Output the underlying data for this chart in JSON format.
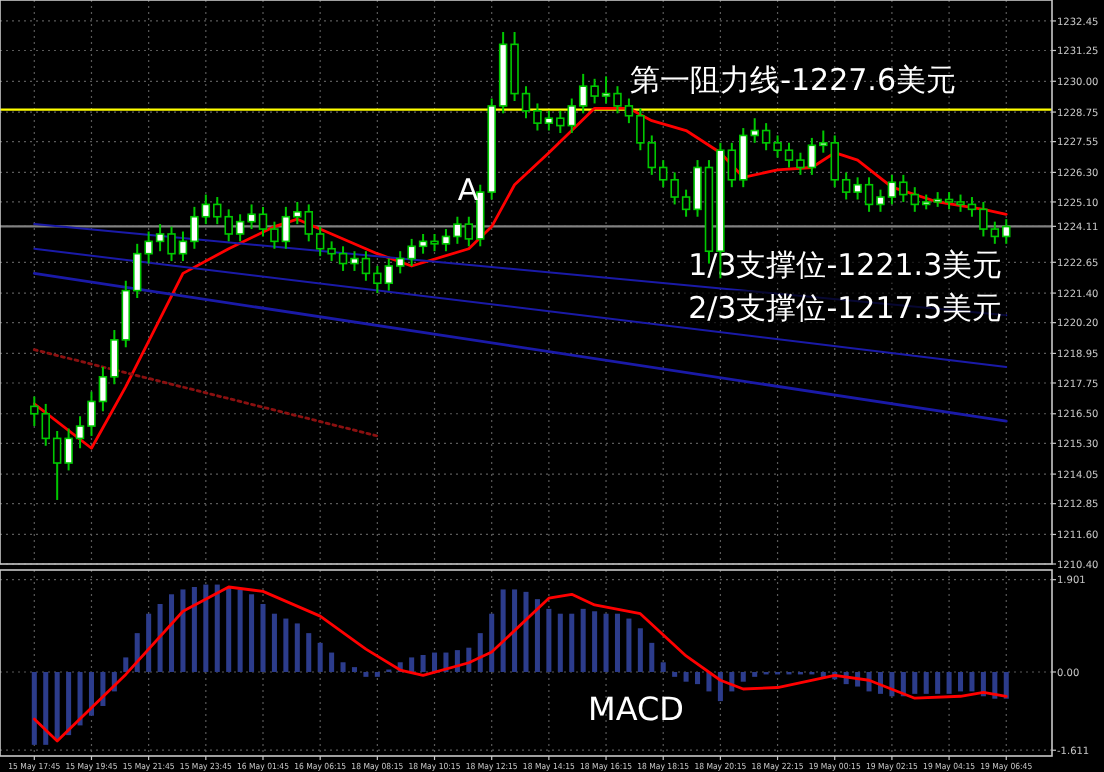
{
  "chart_data": [
    {
      "type": "candlestick",
      "color": "#00c800",
      "grid": true,
      "tick_labels": "y",
      "categories": [
        null,
        null,
        null,
        null,
        null,
        null,
        null,
        null,
        null,
        null,
        null,
        null,
        null,
        null,
        null,
        null,
        null,
        null,
        null,
        null,
        null,
        null,
        null,
        null,
        null,
        null,
        null,
        null,
        null,
        null,
        null,
        null,
        null,
        null,
        null,
        null,
        null,
        null,
        null,
        null,
        null,
        null,
        null,
        null,
        null,
        null,
        null,
        null,
        null,
        null,
        null,
        null,
        null,
        null,
        null,
        null,
        null,
        null,
        null,
        null,
        null,
        null,
        null,
        null,
        null,
        null,
        null,
        null,
        null,
        null,
        null,
        null,
        null,
        null,
        null,
        null,
        null,
        null,
        null,
        null,
        null,
        null,
        null,
        null,
        null,
        null
      ],
      "ohlc": [
        [
          1216.8,
          1217.2,
          1216.0,
          1216.5
        ],
        [
          1216.5,
          1216.9,
          1215.2,
          1215.5
        ],
        [
          1215.5,
          1215.8,
          1213.0,
          1214.5
        ],
        [
          1214.5,
          1215.9,
          1214.2,
          1215.5
        ],
        [
          1215.5,
          1216.4,
          1215.1,
          1216.0
        ],
        [
          1216.0,
          1217.4,
          1215.6,
          1217.0
        ],
        [
          1217.0,
          1218.4,
          1216.6,
          1218.0
        ],
        [
          1218.0,
          1219.9,
          1217.7,
          1219.5
        ],
        [
          1219.5,
          1221.9,
          1219.2,
          1221.5
        ],
        [
          1221.5,
          1223.4,
          1221.2,
          1223.0
        ],
        [
          1223.0,
          1223.9,
          1222.6,
          1223.5
        ],
        [
          1223.5,
          1224.2,
          1223.1,
          1223.8
        ],
        [
          1223.8,
          1224.1,
          1222.7,
          1223.0
        ],
        [
          1223.0,
          1223.9,
          1222.7,
          1223.5
        ],
        [
          1223.5,
          1224.9,
          1223.2,
          1224.5
        ],
        [
          1224.5,
          1225.4,
          1224.2,
          1225.0
        ],
        [
          1225.0,
          1225.3,
          1224.2,
          1224.5
        ],
        [
          1224.5,
          1224.8,
          1223.5,
          1223.8
        ],
        [
          1223.8,
          1224.6,
          1223.5,
          1224.3
        ],
        [
          1224.3,
          1225.0,
          1224.0,
          1224.6
        ],
        [
          1224.6,
          1224.9,
          1223.7,
          1224.0
        ],
        [
          1224.0,
          1224.3,
          1223.2,
          1223.5
        ],
        [
          1223.5,
          1224.9,
          1223.2,
          1224.5
        ],
        [
          1224.5,
          1225.1,
          1224.2,
          1224.7
        ],
        [
          1224.7,
          1225.0,
          1223.5,
          1223.8
        ],
        [
          1223.8,
          1224.1,
          1222.9,
          1223.2
        ],
        [
          1223.2,
          1223.5,
          1222.7,
          1223.0
        ],
        [
          1223.0,
          1223.3,
          1222.3,
          1222.6
        ],
        [
          1222.6,
          1223.1,
          1222.3,
          1222.8
        ],
        [
          1222.8,
          1223.1,
          1221.9,
          1222.2
        ],
        [
          1222.2,
          1222.5,
          1221.4,
          1221.8
        ],
        [
          1221.8,
          1222.8,
          1221.5,
          1222.5
        ],
        [
          1222.5,
          1223.1,
          1222.2,
          1222.8
        ],
        [
          1222.8,
          1223.6,
          1222.5,
          1223.3
        ],
        [
          1223.3,
          1223.8,
          1223.0,
          1223.5
        ],
        [
          1223.5,
          1223.8,
          1223.1,
          1223.4
        ],
        [
          1223.4,
          1224.0,
          1223.1,
          1223.7
        ],
        [
          1223.7,
          1224.5,
          1223.4,
          1224.2
        ],
        [
          1224.2,
          1224.5,
          1223.3,
          1223.6
        ],
        [
          1223.6,
          1225.8,
          1223.3,
          1225.5
        ],
        [
          1225.5,
          1229.3,
          1225.2,
          1229.0
        ],
        [
          1229.0,
          1232.0,
          1228.7,
          1231.5
        ],
        [
          1231.5,
          1232.0,
          1229.2,
          1229.5
        ],
        [
          1229.5,
          1229.8,
          1228.5,
          1228.8
        ],
        [
          1228.8,
          1229.1,
          1228.0,
          1228.3
        ],
        [
          1228.3,
          1228.8,
          1228.0,
          1228.5
        ],
        [
          1228.5,
          1228.8,
          1227.9,
          1228.2
        ],
        [
          1228.2,
          1229.3,
          1227.9,
          1229.0
        ],
        [
          1229.0,
          1230.3,
          1228.7,
          1229.8
        ],
        [
          1229.8,
          1230.1,
          1229.1,
          1229.4
        ],
        [
          1229.4,
          1230.2,
          1229.1,
          1229.5
        ],
        [
          1229.5,
          1229.8,
          1228.7,
          1229.0
        ],
        [
          1229.0,
          1229.3,
          1228.3,
          1228.6
        ],
        [
          1228.6,
          1228.9,
          1227.2,
          1227.5
        ],
        [
          1227.5,
          1227.8,
          1226.2,
          1226.5
        ],
        [
          1226.5,
          1226.8,
          1225.7,
          1226.0
        ],
        [
          1226.0,
          1226.3,
          1225.0,
          1225.3
        ],
        [
          1225.3,
          1225.6,
          1224.5,
          1224.8
        ],
        [
          1224.8,
          1226.8,
          1224.5,
          1226.5
        ],
        [
          1226.5,
          1226.8,
          1222.6,
          1223.1
        ],
        [
          1223.1,
          1227.5,
          1222.0,
          1227.2
        ],
        [
          1227.2,
          1227.5,
          1225.7,
          1226.0
        ],
        [
          1226.0,
          1228.1,
          1225.7,
          1227.8
        ],
        [
          1227.8,
          1228.5,
          1227.5,
          1228.0
        ],
        [
          1228.0,
          1228.3,
          1227.2,
          1227.5
        ],
        [
          1227.5,
          1227.8,
          1226.9,
          1227.2
        ],
        [
          1227.2,
          1227.5,
          1226.5,
          1226.8
        ],
        [
          1226.8,
          1227.1,
          1226.2,
          1226.5
        ],
        [
          1226.5,
          1227.7,
          1226.2,
          1227.4
        ],
        [
          1227.4,
          1228.0,
          1227.1,
          1227.5
        ],
        [
          1227.5,
          1227.8,
          1225.7,
          1226.0
        ],
        [
          1226.0,
          1226.3,
          1225.2,
          1225.5
        ],
        [
          1225.5,
          1226.1,
          1225.2,
          1225.8
        ],
        [
          1225.8,
          1226.1,
          1224.7,
          1225.0
        ],
        [
          1225.0,
          1225.6,
          1224.7,
          1225.3
        ],
        [
          1225.3,
          1226.2,
          1225.0,
          1225.9
        ],
        [
          1225.9,
          1226.2,
          1225.1,
          1225.4
        ],
        [
          1225.4,
          1225.7,
          1224.7,
          1225.0
        ],
        [
          1225.0,
          1225.4,
          1224.8,
          1225.1
        ],
        [
          1225.1,
          1225.5,
          1224.9,
          1225.2
        ],
        [
          1225.2,
          1225.5,
          1224.8,
          1225.1
        ],
        [
          1225.1,
          1225.4,
          1224.7,
          1225.0
        ],
        [
          1225.0,
          1225.3,
          1224.5,
          1224.8
        ],
        [
          1224.8,
          1225.1,
          1223.7,
          1224.0
        ],
        [
          1224.0,
          1224.3,
          1223.4,
          1223.7
        ],
        [
          1223.7,
          1224.4,
          1223.4,
          1224.1
        ]
      ],
      "series": [
        {
          "type": "line",
          "color": "#ff0000",
          "values": [
            1216.9,
            null,
            null,
            null,
            null,
            1215.1,
            null,
            null,
            1217.6,
            null,
            null,
            null,
            null,
            1222.2,
            null,
            null,
            null,
            1223.2,
            null,
            null,
            null,
            1224.1,
            null,
            1224.4,
            null,
            null,
            1223.8,
            null,
            null,
            null,
            1223.0,
            null,
            null,
            1222.5,
            null,
            null,
            null,
            null,
            1223.2,
            null,
            1224.1,
            null,
            1225.8,
            null,
            null,
            1227.1,
            null,
            1228.0,
            null,
            1228.9,
            null,
            null,
            1228.9,
            null,
            1228.4,
            null,
            null,
            1228.0,
            null,
            null,
            1227.1,
            null,
            1226.1,
            null,
            null,
            1226.4,
            null,
            null,
            1226.5,
            null,
            1227.1,
            null,
            1226.8,
            null,
            null,
            1225.7,
            null,
            null,
            null,
            1225.1,
            null,
            null,
            null,
            1224.8,
            null,
            1224.6
          ]
        },
        {
          "type": "line",
          "name": "1/3支撑位-1221.3美元",
          "color": "#1a1aa8",
          "values": [
            1224.2,
            null,
            null,
            null,
            null,
            null,
            null,
            null,
            null,
            null,
            null,
            null,
            null,
            null,
            null,
            null,
            null,
            null,
            null,
            null,
            null,
            null,
            null,
            null,
            null,
            null,
            null,
            null,
            null,
            null,
            null,
            null,
            null,
            null,
            null,
            null,
            null,
            null,
            null,
            null,
            null,
            null,
            null,
            null,
            null,
            null,
            null,
            null,
            null,
            null,
            null,
            null,
            null,
            null,
            null,
            null,
            null,
            null,
            null,
            null,
            null,
            null,
            null,
            null,
            null,
            null,
            null,
            null,
            null,
            null,
            null,
            null,
            null,
            null,
            null,
            null,
            null,
            null,
            null,
            null,
            null,
            null,
            null,
            null,
            null,
            1220.5
          ]
        },
        {
          "type": "line",
          "name": "2/3支撑位-1217.5美元",
          "color": "#1a1aa8",
          "values": [
            1223.2,
            null,
            null,
            null,
            null,
            null,
            null,
            null,
            null,
            null,
            null,
            null,
            null,
            null,
            null,
            null,
            null,
            null,
            null,
            null,
            null,
            null,
            null,
            null,
            null,
            null,
            null,
            null,
            null,
            null,
            null,
            null,
            null,
            null,
            null,
            null,
            null,
            null,
            null,
            null,
            null,
            null,
            null,
            null,
            null,
            null,
            null,
            null,
            null,
            null,
            null,
            null,
            null,
            null,
            null,
            null,
            null,
            null,
            null,
            null,
            null,
            null,
            null,
            null,
            null,
            null,
            null,
            null,
            null,
            null,
            null,
            null,
            null,
            null,
            null,
            null,
            null,
            null,
            null,
            null,
            null,
            null,
            null,
            null,
            null,
            1218.4
          ]
        },
        {
          "type": "line",
          "color": "#1a1aa8",
          "values": [
            1222.2,
            null,
            null,
            null,
            null,
            null,
            null,
            null,
            null,
            null,
            null,
            null,
            null,
            null,
            null,
            null,
            null,
            null,
            null,
            null,
            null,
            null,
            null,
            null,
            null,
            null,
            null,
            null,
            null,
            null,
            null,
            null,
            null,
            null,
            null,
            null,
            null,
            null,
            null,
            null,
            null,
            null,
            null,
            null,
            null,
            null,
            null,
            null,
            null,
            null,
            null,
            null,
            null,
            null,
            null,
            null,
            null,
            null,
            null,
            null,
            null,
            null,
            null,
            null,
            null,
            null,
            null,
            null,
            null,
            null,
            null,
            null,
            null,
            null,
            null,
            null,
            null,
            null,
            null,
            null,
            null,
            null,
            null,
            null,
            null,
            1216.2
          ]
        },
        {
          "type": "line",
          "color": "#8b1010",
          "line_style": "dotted",
          "values": [
            1219.1,
            null,
            null,
            null,
            null,
            null,
            null,
            null,
            null,
            null,
            null,
            null,
            null,
            null,
            null,
            null,
            null,
            null,
            null,
            null,
            null,
            null,
            null,
            null,
            null,
            null,
            null,
            null,
            null,
            null,
            1215.6,
            null,
            null,
            null,
            null,
            null,
            null,
            null,
            null,
            null,
            null,
            null,
            null,
            null,
            null,
            null,
            null,
            null,
            null,
            null,
            null,
            null,
            null,
            null,
            null,
            null,
            null,
            null,
            null,
            null,
            null,
            null,
            null,
            null,
            null,
            null,
            null,
            null,
            null,
            null,
            null,
            null,
            null,
            null,
            null,
            null,
            null,
            null,
            null,
            null,
            null,
            null,
            null,
            null,
            null,
            null
          ]
        }
      ],
      "ylim": [
        1210.4,
        1233.3
      ],
      "yticks": [
        {
          "value": 1232.45,
          "label": "1232.45"
        },
        {
          "value": 1231.25,
          "label": "1231.25"
        },
        {
          "value": 1230,
          "label": "1230.00"
        },
        {
          "value": 1228.75,
          "label": "1228.75"
        },
        {
          "value": 1227.55,
          "label": "1227.55"
        },
        {
          "value": 1226.3,
          "label": "1226.30"
        },
        {
          "value": 1225.1,
          "label": "1225.10"
        },
        {
          "value": 1224.11,
          "label": "1224.11"
        },
        {
          "value": 1222.65,
          "label": "1222.65"
        },
        {
          "value": 1221.4,
          "label": "1221.40"
        },
        {
          "value": 1220.2,
          "label": "1220.20"
        },
        {
          "value": 1218.95,
          "label": "1218.95"
        },
        {
          "value": 1217.75,
          "label": "1217.75"
        },
        {
          "value": 1216.5,
          "label": "1216.50"
        },
        {
          "value": 1215.3,
          "label": "1215.30"
        },
        {
          "value": 1214.05,
          "label": "1214.05"
        },
        {
          "value": 1212.85,
          "label": "1212.85"
        },
        {
          "value": 1211.6,
          "label": "1211.60"
        },
        {
          "value": 1210.4,
          "label": "1210.40"
        }
      ],
      "ref_lines": [
        {
          "axis": "y",
          "value": 1228.85,
          "label": "第一阻力线-1227.6美元",
          "color": "#ffff00"
        },
        {
          "axis": "y",
          "value": 1224.11,
          "color": "#808080"
        }
      ],
      "annotations": [
        "A"
      ]
    },
    {
      "type": "bar",
      "grid": true,
      "categories": [
        "15 May 17:45",
        null,
        null,
        null,
        null,
        "15 May 19:45",
        null,
        null,
        null,
        null,
        "15 May 21:45",
        null,
        null,
        null,
        null,
        "15 May 23:45",
        null,
        null,
        null,
        null,
        "16 May 01:45",
        null,
        null,
        null,
        null,
        "16 May 06:15",
        null,
        null,
        null,
        null,
        "18 May 08:15",
        null,
        null,
        null,
        null,
        "18 May 10:15",
        null,
        null,
        null,
        null,
        "18 May 12:15",
        null,
        null,
        null,
        null,
        "18 May 14:15",
        null,
        null,
        null,
        null,
        "18 May 16:15",
        null,
        null,
        null,
        null,
        "18 May 18:15",
        null,
        null,
        null,
        null,
        "18 May 20:15",
        null,
        null,
        null,
        null,
        "18 May 22:15",
        null,
        null,
        null,
        null,
        "19 May 00:15",
        null,
        null,
        null,
        null,
        "19 May 02:15",
        null,
        null,
        null,
        null,
        "19 May 04:15",
        null,
        null,
        null,
        null,
        "19 May 06:45"
      ],
      "series": [
        {
          "type": "bar",
          "color": "#2c3c8c",
          "values": [
            -1.5,
            -1.5,
            -1.4,
            -1.3,
            -1.1,
            -0.9,
            -0.7,
            -0.4,
            0.3,
            0.8,
            1.2,
            1.4,
            1.6,
            1.7,
            1.75,
            1.8,
            1.8,
            1.75,
            1.7,
            1.6,
            1.4,
            1.2,
            1.1,
            1.0,
            0.8,
            0.6,
            0.4,
            0.2,
            0.1,
            -0.1,
            -0.1,
            0.05,
            0.2,
            0.3,
            0.35,
            0.4,
            0.4,
            0.45,
            0.5,
            0.8,
            1.2,
            1.7,
            1.7,
            1.65,
            1.5,
            1.3,
            1.2,
            1.2,
            1.3,
            1.25,
            1.2,
            1.2,
            1.1,
            0.9,
            0.6,
            0.2,
            -0.1,
            -0.2,
            -0.25,
            -0.4,
            -0.6,
            -0.4,
            -0.2,
            -0.1,
            -0.05,
            -0.05,
            -0.05,
            -0.05,
            -0.05,
            -0.1,
            -0.15,
            -0.25,
            -0.3,
            -0.4,
            -0.45,
            -0.5,
            -0.5,
            -0.45,
            -0.45,
            -0.45,
            -0.45,
            -0.4,
            -0.4,
            -0.5,
            -0.55,
            -0.55
          ]
        },
        {
          "type": "line",
          "color": "#ff0000",
          "values": [
            -0.97,
            null,
            -1.42,
            null,
            null,
            null,
            null,
            null,
            -0.05,
            null,
            null,
            null,
            null,
            1.25,
            null,
            null,
            null,
            1.75,
            null,
            null,
            1.66,
            null,
            null,
            null,
            null,
            1.15,
            null,
            null,
            null,
            0.47,
            null,
            null,
            0.04,
            null,
            -0.07,
            null,
            null,
            null,
            0.19,
            null,
            0.41,
            null,
            null,
            null,
            null,
            1.52,
            null,
            1.6,
            null,
            1.38,
            null,
            null,
            null,
            1.2,
            null,
            null,
            null,
            0.33,
            null,
            null,
            -0.17,
            null,
            -0.35,
            null,
            null,
            -0.32,
            null,
            null,
            null,
            null,
            -0.07,
            null,
            null,
            -0.17,
            null,
            null,
            null,
            -0.54,
            null,
            null,
            null,
            -0.5,
            null,
            -0.42,
            null,
            -0.5
          ]
        }
      ],
      "ylim": [
        -1.73,
        2.1
      ],
      "yticks": [
        1.901,
        {
          "value": 0,
          "label": "0.00"
        },
        -1.611
      ],
      "annotations": [
        "MACD"
      ]
    }
  ]
}
